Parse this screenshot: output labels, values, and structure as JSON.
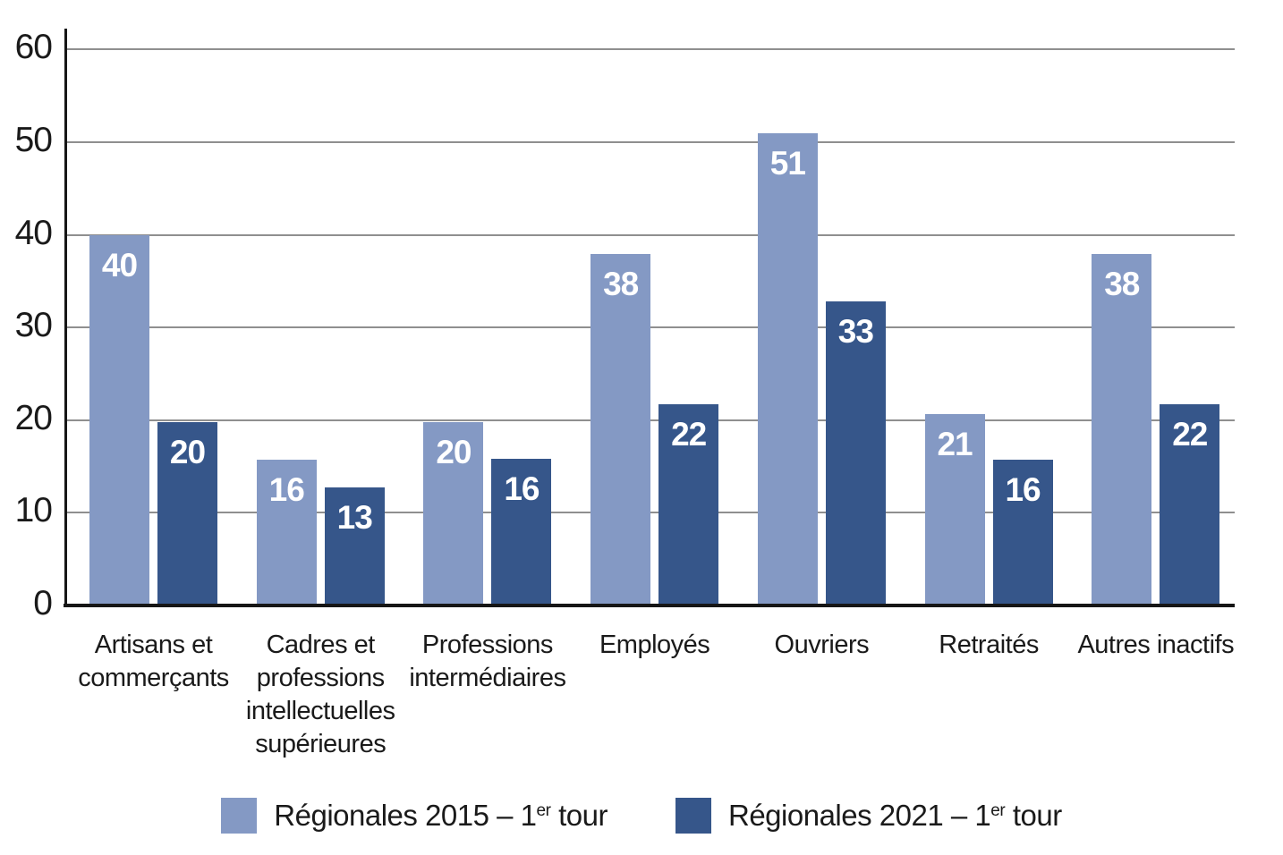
{
  "chart_data": {
    "type": "bar",
    "categories": [
      "Artisans et commerçants",
      "Cadres et professions intellectuelles supérieures",
      "Professions intermédiaires",
      "Employés",
      "Ouvriers",
      "Retraités",
      "Autres inactifs"
    ],
    "series": [
      {
        "name": "Régionales 2015 – 1er tour",
        "color": "#8499c4",
        "values": [
          40,
          16,
          20,
          38,
          51,
          21,
          38
        ],
        "drawn_values": [
          40,
          15.7,
          19.8,
          37.9,
          51,
          20.7,
          37.9
        ]
      },
      {
        "name": "Régionales 2021 – 1er tour",
        "color": "#36568a",
        "values": [
          20,
          13,
          16,
          22,
          33,
          16,
          22
        ],
        "drawn_values": [
          19.8,
          12.7,
          15.8,
          21.7,
          32.8,
          15.7,
          21.7
        ]
      }
    ],
    "title": "",
    "xlabel": "",
    "ylabel": "",
    "ylim": [
      0,
      60
    ],
    "yticks": [
      0,
      10,
      20,
      30,
      40,
      50,
      60
    ],
    "grid": true,
    "value_labels": "inside-top",
    "legend_position": "bottom"
  },
  "legend": {
    "items": [
      {
        "prefix": "Régionales 2015 – 1",
        "sup": "er",
        "suffix": " tour",
        "color": "#8499c4"
      },
      {
        "prefix": "Régionales 2021 – 1",
        "sup": "er",
        "suffix": " tour",
        "color": "#36568a"
      }
    ]
  },
  "colors": {
    "background": "#ffffff",
    "gridline": "#8f8f8f",
    "axis": "#161616",
    "text": "#1a1a1a",
    "bar_value_text": "#ffffff",
    "series_2015": "#8499c4",
    "series_2021": "#36568a"
  }
}
